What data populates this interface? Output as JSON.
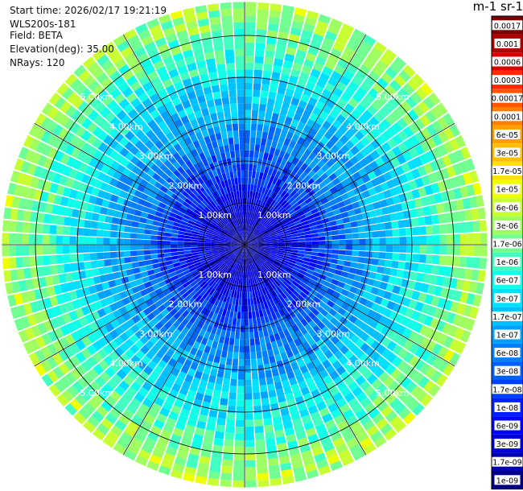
{
  "header": {
    "start_time": "Start time: 2026/02/17 19:21:19",
    "instrument": "WLS200s-181",
    "field": "Field: BETA",
    "elevation": "Elevation(deg): 35.00",
    "nrays": "NRays: 120"
  },
  "colorbar": {
    "title": "m-1 sr-1",
    "labels": [
      "0.0017",
      "0.001",
      "0.0006",
      "0.0003",
      "0.00017",
      "0.0001",
      "6e-05",
      "3e-05",
      "1.7e-05",
      "1e-05",
      "6e-06",
      "3e-06",
      "1.7e-06",
      "1e-06",
      "6e-07",
      "3e-07",
      "1.7e-07",
      "1e-07",
      "6e-08",
      "3e-08",
      "1.7e-08",
      "1e-08",
      "6e-09",
      "3e-09",
      "1.7e-09",
      "1e-09"
    ],
    "colors": [
      "#7a0000",
      "#b00000",
      "#d80000",
      "#ff2a00",
      "#ff5500",
      "#ff7f00",
      "#ff9f00",
      "#ffbf00",
      "#ffe000",
      "#f0ff00",
      "#c8ff30",
      "#a0ff60",
      "#70ff90",
      "#40ffc0",
      "#10ffe8",
      "#00e0ff",
      "#00c0ff",
      "#00a0ff",
      "#0080ff",
      "#0060ff",
      "#0040ff",
      "#0020ff",
      "#0000ff",
      "#0000d8",
      "#0000b0",
      "#000088"
    ]
  },
  "chart_data": {
    "type": "heatmap",
    "projection": "polar PPI",
    "field": "BETA",
    "units": "m-1 sr-1",
    "elevation_deg": 35.0,
    "n_rays": 120,
    "range_rings_km": [
      1.0,
      2.0,
      3.0,
      4.0,
      5.0
    ],
    "ring_labels": [
      "1.00km",
      "2.00km",
      "3.00km",
      "4.00km",
      "5.00km"
    ],
    "spoke_angles_deg": [
      0,
      30,
      60,
      90,
      120,
      150,
      180,
      210,
      240,
      270,
      300,
      330
    ],
    "max_range_km": 5.8,
    "color_scale": "log",
    "value_range": [
      1e-09,
      0.0017
    ],
    "radial_profile": [
      {
        "range_km": 0.3,
        "beta": 2e-09
      },
      {
        "range_km": 1.0,
        "beta": 5e-09
      },
      {
        "range_km": 1.8,
        "beta": 2e-08
      },
      {
        "range_km": 2.5,
        "beta": 6e-08
      },
      {
        "range_km": 3.2,
        "beta": 1.5e-07
      },
      {
        "range_km": 4.0,
        "beta": 4e-07
      },
      {
        "range_km": 4.8,
        "beta": 1.2e-06
      },
      {
        "range_km": 5.6,
        "beta": 3e-06
      }
    ]
  }
}
